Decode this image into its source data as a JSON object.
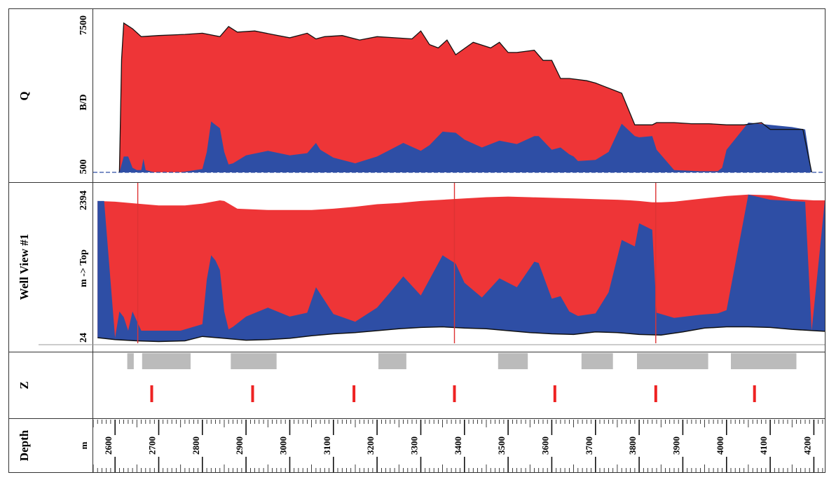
{
  "tracks": {
    "q": {
      "title": "Q",
      "unit": "B/D",
      "y_max_label": "7500",
      "y_min_label": "500"
    },
    "well": {
      "title": "Well View #1",
      "unit": "m -> Top",
      "y_max_label": "2394",
      "y_min_label": "24"
    },
    "z": {
      "title": "Z"
    },
    "depth": {
      "title": "Depth",
      "unit": "m"
    }
  },
  "colors": {
    "total": "#ee3537",
    "water": "#2e4ea5",
    "outline": "#111111",
    "gray_block": "#bbbbbb",
    "marker": "#ee2222",
    "vline": "#dd3333"
  },
  "chart_data": [
    {
      "type": "area",
      "name": "Q",
      "xlabel": "",
      "ylabel": "B/D",
      "ylim": [
        500,
        7500
      ],
      "xlim": [
        2550,
        4225
      ],
      "series": [
        {
          "name": "",
          "x": [
            2610,
            2615,
            2620,
            2640,
            2660,
            2700,
            2760,
            2800,
            2840,
            2860,
            2880,
            2920,
            2960,
            3000,
            3040,
            3060,
            3080,
            3120,
            3160,
            3200,
            3240,
            3280,
            3300,
            3320,
            3340,
            3360,
            3380,
            3420,
            3460,
            3480,
            3500,
            3520,
            3560,
            3580,
            3600,
            3620,
            3640,
            3680,
            3700,
            3720,
            3760,
            3790,
            3830,
            3840,
            3880,
            3920,
            3960,
            4000,
            4040,
            4080,
            4100,
            4140,
            4175,
            4195
          ],
          "values": [
            500,
            5500,
            7100,
            6850,
            6500,
            6550,
            6600,
            6650,
            6500,
            6950,
            6700,
            6750,
            6600,
            6450,
            6650,
            6400,
            6500,
            6550,
            6350,
            6500,
            6450,
            6400,
            6750,
            6150,
            6000,
            6350,
            5700,
            6250,
            6000,
            6250,
            5800,
            5800,
            5900,
            5450,
            5450,
            4650,
            4650,
            4550,
            4450,
            4300,
            4000,
            2600,
            2600,
            2700,
            2700,
            2650,
            2650,
            2600,
            2600,
            2700,
            2400,
            2400,
            2400,
            500
          ]
        },
        {
          "name": "",
          "x": [
            2610,
            2620,
            2630,
            2640,
            2650,
            2660,
            2665,
            2670,
            2690,
            2750,
            2800,
            2810,
            2820,
            2830,
            2840,
            2850,
            2860,
            2870,
            2900,
            2950,
            3000,
            3040,
            3060,
            3070,
            3100,
            3150,
            3200,
            3230,
            3260,
            3300,
            3320,
            3350,
            3380,
            3400,
            3440,
            3480,
            3520,
            3560,
            3570,
            3600,
            3620,
            3640,
            3650,
            3660,
            3700,
            3730,
            3760,
            3790,
            3800,
            3830,
            3840,
            3880,
            3940,
            3980,
            3990,
            4000,
            4050,
            4100,
            4150,
            4180,
            4195
          ],
          "values": [
            500,
            1200,
            1200,
            700,
            600,
            600,
            1100,
            600,
            500,
            500,
            650,
            1400,
            2750,
            2600,
            2450,
            1400,
            850,
            900,
            1250,
            1450,
            1250,
            1350,
            1800,
            1500,
            1150,
            900,
            1200,
            1500,
            1800,
            1450,
            1700,
            2300,
            2250,
            1950,
            1600,
            1900,
            1750,
            2100,
            2100,
            1500,
            1600,
            1300,
            1200,
            1000,
            1050,
            1400,
            2650,
            2100,
            2050,
            2100,
            1500,
            600,
            550,
            550,
            700,
            1500,
            2700,
            2600,
            2500,
            2400,
            500
          ]
        }
      ]
    },
    {
      "type": "area",
      "name": "Well View #1",
      "xlabel": "",
      "ylabel": "m -> Top",
      "ylim": [
        24,
        2394
      ],
      "xlim": [
        2550,
        4225
      ],
      "series": [
        {
          "name": "",
          "x": [
            2560,
            2600,
            2650,
            2700,
            2760,
            2800,
            2840,
            2850,
            2880,
            2950,
            3000,
            3050,
            3100,
            3150,
            3200,
            3250,
            3300,
            3350,
            3400,
            3450,
            3500,
            3550,
            3600,
            3650,
            3700,
            3750,
            3780,
            3800,
            3830,
            3850,
            3880,
            3920,
            3960,
            4000,
            4050,
            4100,
            4150,
            4200,
            4225
          ],
          "values": [
            2230,
            2220,
            2190,
            2160,
            2160,
            2190,
            2240,
            2230,
            2110,
            2090,
            2090,
            2090,
            2110,
            2140,
            2180,
            2200,
            2230,
            2250,
            2270,
            2290,
            2300,
            2290,
            2280,
            2270,
            2260,
            2250,
            2240,
            2230,
            2210,
            2210,
            2220,
            2250,
            2280,
            2310,
            2330,
            2320,
            2260,
            2240,
            2240
          ]
        },
        {
          "name": "",
          "x": [
            2560,
            2575,
            2600,
            2610,
            2620,
            2630,
            2640,
            2660,
            2670,
            2700,
            2750,
            2800,
            2810,
            2820,
            2830,
            2840,
            2850,
            2860,
            2870,
            2900,
            2950,
            3000,
            3040,
            3060,
            3100,
            3150,
            3200,
            3230,
            3260,
            3300,
            3320,
            3350,
            3380,
            3400,
            3440,
            3480,
            3520,
            3560,
            3570,
            3600,
            3620,
            3640,
            3660,
            3700,
            3730,
            3760,
            3790,
            3800,
            3830,
            3840,
            3880,
            3940,
            3980,
            4000,
            4050,
            4100,
            4150,
            4180,
            4195,
            4225
          ],
          "values": [
            2230,
            2230,
            90,
            500,
            410,
            200,
            500,
            200,
            200,
            200,
            200,
            300,
            1000,
            1380,
            1300,
            1150,
            500,
            220,
            260,
            420,
            560,
            420,
            480,
            880,
            460,
            340,
            560,
            800,
            1050,
            750,
            1000,
            1380,
            1250,
            950,
            720,
            1020,
            880,
            1280,
            1260,
            700,
            740,
            500,
            430,
            470,
            800,
            1620,
            1520,
            1880,
            1780,
            480,
            400,
            450,
            470,
            520,
            2330,
            2250,
            2230,
            2220,
            200,
            2230
          ]
        },
        {
          "name": "",
          "x": [
            2560,
            2600,
            2650,
            2700,
            2760,
            2800,
            2850,
            2900,
            2950,
            3000,
            3050,
            3100,
            3150,
            3200,
            3250,
            3300,
            3350,
            3400,
            3450,
            3500,
            3550,
            3600,
            3650,
            3700,
            3750,
            3800,
            3850,
            3900,
            3950,
            4000,
            4050,
            4100,
            4150,
            4200,
            4225
          ],
          "values": [
            90,
            60,
            40,
            30,
            40,
            110,
            80,
            50,
            60,
            80,
            120,
            150,
            170,
            200,
            230,
            250,
            260,
            240,
            230,
            200,
            170,
            150,
            140,
            180,
            170,
            140,
            130,
            180,
            240,
            260,
            260,
            250,
            220,
            200,
            190
          ]
        }
      ]
    },
    {
      "type": "table",
      "name": "Z",
      "gray_intervals": [
        [
          2628,
          2643
        ],
        [
          2662,
          2773
        ],
        [
          2865,
          2970
        ],
        [
          3203,
          3267
        ],
        [
          3477,
          3545
        ],
        [
          3668,
          3740
        ],
        [
          3795,
          3958
        ],
        [
          4010,
          4160
        ]
      ],
      "markers": [
        2684,
        2915,
        3147,
        3377,
        3607,
        3838,
        4064
      ]
    },
    {
      "type": "line",
      "name": "Depth",
      "xlabel": "m",
      "ticks": [
        2600,
        2700,
        2800,
        2900,
        3000,
        3100,
        3200,
        3300,
        3400,
        3500,
        3600,
        3700,
        3800,
        3900,
        4000,
        4100,
        4200
      ],
      "tick_labels": [
        "2600",
        "2700",
        "2800",
        "2900",
        "3000",
        "3100",
        "3200",
        "3300",
        "3400",
        "3500",
        "3600",
        "3700",
        "3800",
        "3900",
        "4000",
        "4100",
        "4200"
      ],
      "xlim": [
        2550,
        4225
      ],
      "vertical_lines": [
        2652,
        3377,
        3838
      ]
    }
  ]
}
